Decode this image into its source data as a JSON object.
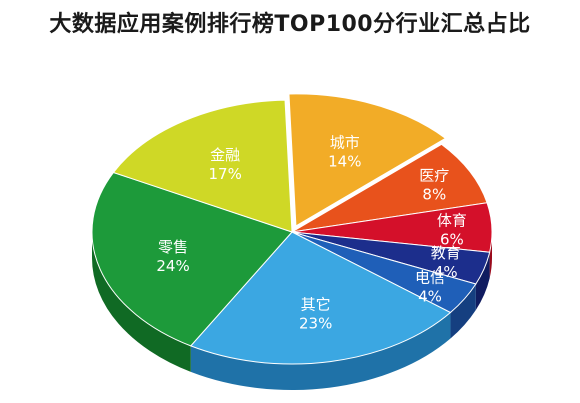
{
  "chart_data": {
    "type": "pie",
    "title": "大数据应用案例排行榜TOP100分行业汇总占比",
    "slices": [
      {
        "name": "城市",
        "value": 14,
        "label": "14%",
        "color": "#f2ac27",
        "side": "#c8861a",
        "text_color": "#ffffff"
      },
      {
        "name": "医疗",
        "value": 8,
        "label": "8%",
        "color": "#e8521c",
        "side": "#b23a10",
        "text_color": "#ffffff"
      },
      {
        "name": "体育",
        "value": 6,
        "label": "6%",
        "color": "#d4102a",
        "side": "#9a0a1c",
        "text_color": "#ffffff"
      },
      {
        "name": "教育",
        "value": 4,
        "label": "4%",
        "color": "#1c2e8c",
        "side": "#101c60",
        "text_color": "#ffffff"
      },
      {
        "name": "电信",
        "value": 4,
        "label": "4%",
        "color": "#1f5fb8",
        "side": "#153f80",
        "text_color": "#ffffff"
      },
      {
        "name": "其它",
        "value": 23,
        "label": "23%",
        "color": "#3ba7e2",
        "side": "#1f72a8",
        "text_color": "#ffffff"
      },
      {
        "name": "零售",
        "value": 24,
        "label": "24%",
        "color": "#1d9a3a",
        "side": "#106a24",
        "text_color": "#ffffff"
      },
      {
        "name": "金融",
        "value": 17,
        "label": "17%",
        "color": "#cfd826",
        "side": "#9aa114",
        "text_color": "#ffffff"
      }
    ],
    "legend": "none"
  }
}
